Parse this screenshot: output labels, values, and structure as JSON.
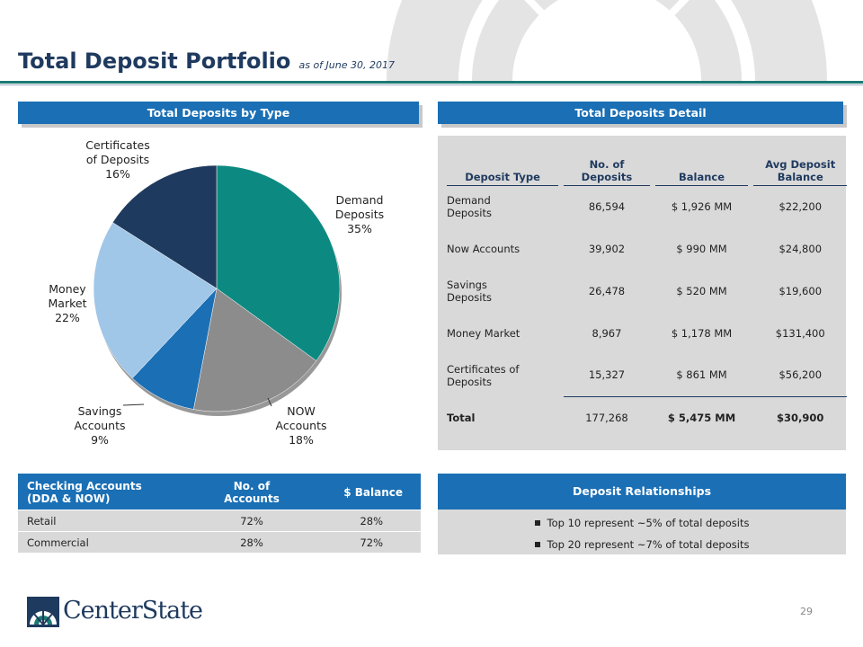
{
  "slide": {
    "title": "Total Deposit Portfolio",
    "subtitle": "as of June 30, 2017",
    "page_number": "29",
    "logo_text": "CenterState"
  },
  "pie_section": {
    "header": "Total  Deposits by Type"
  },
  "chart_data": {
    "type": "pie",
    "slices": [
      {
        "label": [
          "Demand",
          "Deposits"
        ],
        "value": 35,
        "pct": "35%",
        "color": "#0c8a82"
      },
      {
        "label": [
          "NOW",
          "Accounts"
        ],
        "value": 18,
        "pct": "18%",
        "color": "#8c8c8c"
      },
      {
        "label": [
          "Savings",
          "Accounts"
        ],
        "value": 9,
        "pct": "9%",
        "color": "#1a6fb5"
      },
      {
        "label": [
          "Money",
          "Market"
        ],
        "value": 22,
        "pct": "22%",
        "color": "#a0c6e8"
      },
      {
        "label": [
          "Certificates",
          "of Deposits"
        ],
        "value": 16,
        "pct": "16%",
        "color": "#1f3a5f"
      }
    ]
  },
  "detail": {
    "header": "Total Deposits Detail",
    "columns": [
      "Deposit Type",
      "No. of Deposits",
      "Balance",
      "Avg Deposit Balance"
    ],
    "col_head": {
      "type": "Deposit Type",
      "num1": "No. of",
      "num2": "Deposits",
      "bal": "Balance",
      "avg1": "Avg Deposit",
      "avg2": "Balance"
    },
    "rows": [
      {
        "type1": "Demand",
        "type2": "Deposits",
        "num": "86,594",
        "bal": "$ 1,926 MM",
        "avg": "$22,200"
      },
      {
        "type1": "Now Accounts",
        "type2": "",
        "num": "39,902",
        "bal": "$ 990 MM",
        "avg": "$24,800"
      },
      {
        "type1": "Savings",
        "type2": "Deposits",
        "num": "26,478",
        "bal": "$ 520 MM",
        "avg": "$19,600"
      },
      {
        "type1": "Money Market",
        "type2": "",
        "num": "8,967",
        "bal": "$ 1,178 MM",
        "avg": "$131,400"
      },
      {
        "type1": "Certificates of",
        "type2": "Deposits",
        "num": "15,327",
        "bal": "$ 861 MM",
        "avg": "$56,200"
      }
    ],
    "total": {
      "type": "Total",
      "num": "177,268",
      "bal": "$ 5,475 MM",
      "avg": "$30,900"
    }
  },
  "checking": {
    "h1a": "Checking Accounts",
    "h1b": "(DDA & NOW)",
    "h2a": "No. of",
    "h2b": "Accounts",
    "h3": "$ Balance",
    "rows": [
      {
        "label": "Retail",
        "accounts": "72%",
        "balance": "28%"
      },
      {
        "label": "Commercial",
        "accounts": "28%",
        "balance": "72%"
      }
    ]
  },
  "relationships": {
    "header": "Deposit Relationships",
    "items": [
      "Top 10 represent ~5% of total deposits",
      "Top 20 represent ~7% of total deposits"
    ]
  }
}
